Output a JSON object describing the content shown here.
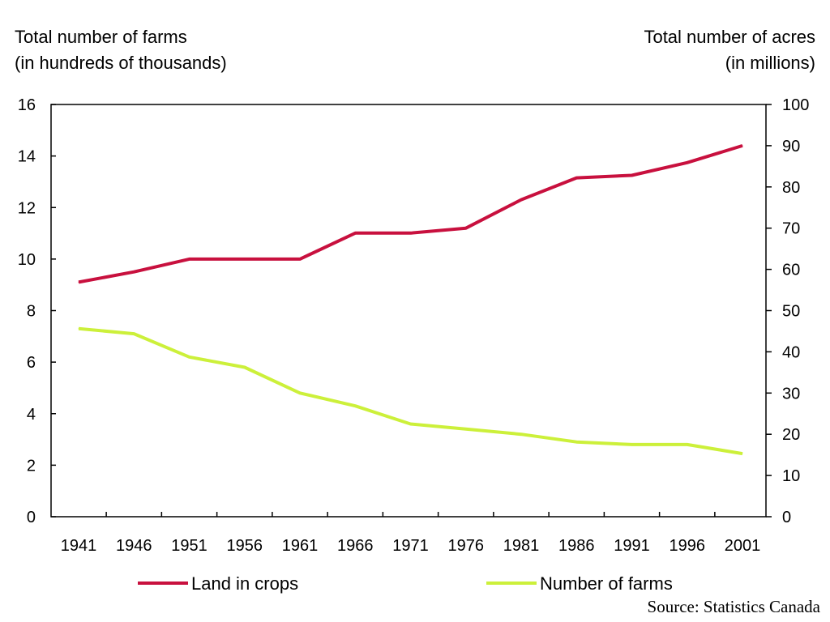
{
  "chart_data": {
    "type": "line",
    "left_axis": {
      "title_line1": "Total number of farms",
      "title_line2": "(in hundreds of thousands)",
      "range": [
        0,
        16
      ],
      "ticks": [
        "0",
        "2",
        "4",
        "6",
        "8",
        "10",
        "12",
        "14",
        "16"
      ]
    },
    "right_axis": {
      "title_line1": "Total number of acres",
      "title_line2": "(in millions)",
      "range": [
        0,
        100
      ],
      "ticks": [
        "0",
        "10",
        "20",
        "30",
        "40",
        "50",
        "60",
        "70",
        "80",
        "90",
        "100"
      ]
    },
    "x": [
      "1941",
      "1946",
      "1951",
      "1956",
      "1961",
      "1966",
      "1971",
      "1976",
      "1981",
      "1986",
      "1991",
      "1996",
      "2001"
    ],
    "series": [
      {
        "name": "Land in crops",
        "axis": "right",
        "color": "#c8103e",
        "values": [
          56.9,
          59.4,
          62.5,
          62.5,
          62.5,
          68.8,
          68.8,
          70.0,
          76.9,
          82.2,
          82.8,
          85.9,
          90.0
        ]
      },
      {
        "name": "Number of farms",
        "axis": "left",
        "color": "#ccf03a",
        "values": [
          7.3,
          7.1,
          6.2,
          5.8,
          4.8,
          4.3,
          3.6,
          3.4,
          3.2,
          2.9,
          2.8,
          2.8,
          2.45
        ]
      }
    ],
    "grid": false,
    "legend_position": "bottom"
  },
  "source": "Source: Statistics Canada"
}
